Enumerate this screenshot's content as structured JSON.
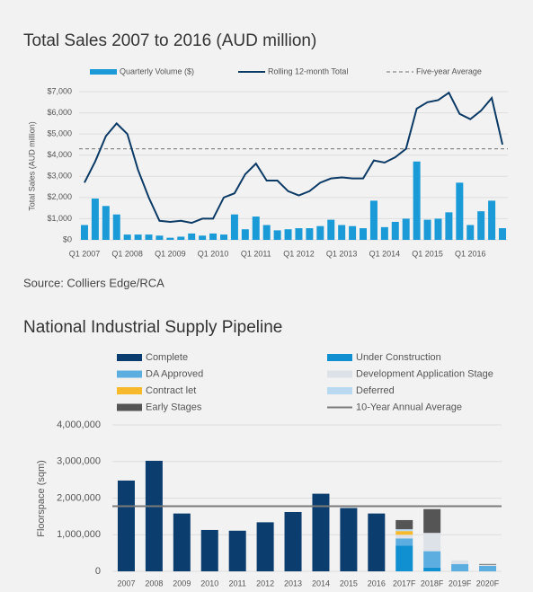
{
  "chart_data": [
    {
      "type": "bar",
      "title": "Total Sales 2007 to 2016 (AUD million)",
      "y_label": "Total Sales (AUD million)",
      "source": "Source: Colliers Edge/RCA",
      "categories": [
        "Q1 2007",
        null,
        null,
        null,
        "Q1 2008",
        null,
        null,
        null,
        "Q1 2009",
        null,
        null,
        null,
        "Q1 2010",
        null,
        null,
        null,
        "Q1 2011",
        null,
        null,
        null,
        "Q1 2012",
        null,
        null,
        null,
        "Q1 2013",
        null,
        null,
        null,
        "Q1 2014",
        null,
        null,
        null,
        "Q1 2015",
        null,
        null,
        null,
        "Q1 2016",
        null,
        null,
        null
      ],
      "series": [
        {
          "name": "Quarterly Volume ($)",
          "color": "#1a9bd7",
          "mark": "bar",
          "values": [
            700,
            1950,
            1600,
            1200,
            250,
            250,
            250,
            200,
            100,
            150,
            300,
            200,
            300,
            250,
            1200,
            500,
            1100,
            700,
            450,
            500,
            550,
            550,
            650,
            950,
            700,
            650,
            550,
            1850,
            600,
            850,
            1000,
            3700,
            950,
            1000,
            1300,
            2700,
            700,
            1350,
            1850,
            550
          ]
        },
        {
          "name": "Rolling 12-month Total",
          "color": "#0b3a66",
          "mark": "line",
          "values": [
            2700,
            3700,
            4900,
            5500,
            5000,
            3300,
            2000,
            900,
            850,
            900,
            800,
            1000,
            1000,
            2000,
            2200,
            3100,
            3600,
            2800,
            2800,
            2300,
            2100,
            2300,
            2700,
            2900,
            2950,
            2900,
            2900,
            3750,
            3650,
            3900,
            4300,
            6200,
            6500,
            6600,
            6950,
            5950,
            5700,
            6100,
            6700,
            4500
          ]
        }
      ],
      "reference_lines": [
        {
          "name": "Five-year Average",
          "value": 4300,
          "color": "#8a8a8a",
          "dashed": true
        }
      ],
      "ylim": [
        0,
        7000
      ],
      "yticks": [
        {
          "value": 0,
          "label": "$0"
        },
        {
          "value": 1000,
          "label": "$1,000"
        },
        {
          "value": 2000,
          "label": "$2,000"
        },
        {
          "value": 3000,
          "label": "$3,000"
        },
        {
          "value": 4000,
          "label": "$4,000"
        },
        {
          "value": 5000,
          "label": "$5,000"
        },
        {
          "value": 6000,
          "label": "$6,000"
        },
        {
          "value": 7000,
          "label": "$7,000"
        }
      ],
      "grid": true
    },
    {
      "type": "stacked_bar",
      "title": "National Industrial Supply Pipeline",
      "y_label": "Floorspace (sqm)",
      "categories": [
        "2007",
        "2008",
        "2009",
        "2010",
        "2011",
        "2012",
        "2013",
        "2014",
        "2015",
        "2016",
        "2017F",
        "2018F",
        "2019F",
        "2020F"
      ],
      "series": [
        {
          "name": "Complete",
          "color": "#0b3d6e",
          "values": [
            2480000,
            3020000,
            1580000,
            1130000,
            1110000,
            1340000,
            1620000,
            2120000,
            1730000,
            1580000,
            0,
            0,
            0,
            0
          ]
        },
        {
          "name": "Under Construction",
          "color": "#1090d0",
          "values": [
            0,
            0,
            0,
            0,
            0,
            0,
            0,
            0,
            0,
            0,
            700000,
            100000,
            0,
            0
          ]
        },
        {
          "name": "DA Approved",
          "color": "#5daee0",
          "values": [
            0,
            0,
            0,
            0,
            0,
            0,
            0,
            0,
            0,
            0,
            200000,
            450000,
            200000,
            150000
          ]
        },
        {
          "name": "Development Application Stage",
          "color": "#dde2e8",
          "values": [
            0,
            0,
            0,
            0,
            0,
            0,
            0,
            0,
            0,
            0,
            100000,
            500000,
            100000,
            30000
          ]
        },
        {
          "name": "Contract let",
          "color": "#f6b92c",
          "values": [
            0,
            0,
            0,
            0,
            0,
            0,
            0,
            0,
            0,
            0,
            100000,
            0,
            0,
            0
          ]
        },
        {
          "name": "Deferred",
          "color": "#b9d9f0",
          "values": [
            0,
            0,
            0,
            0,
            0,
            0,
            0,
            0,
            0,
            0,
            50000,
            0,
            0,
            0
          ]
        },
        {
          "name": "Early Stages",
          "color": "#555555",
          "values": [
            0,
            0,
            0,
            0,
            0,
            0,
            0,
            0,
            0,
            0,
            250000,
            650000,
            0,
            20000
          ]
        }
      ],
      "reference_lines": [
        {
          "name": "10-Year Annual Average",
          "value": 1780000,
          "color": "#7a7a7a",
          "dashed": false
        }
      ],
      "ylim": [
        0,
        4000000
      ],
      "yticks": [
        0,
        {
          "value": 1000000,
          "label": "1,000,000"
        },
        {
          "value": 2000000,
          "label": "2,000,000"
        },
        {
          "value": 3000000,
          "label": "3,000,000"
        },
        {
          "value": 4000000,
          "label": "4,000,000"
        }
      ],
      "grid": true
    }
  ]
}
